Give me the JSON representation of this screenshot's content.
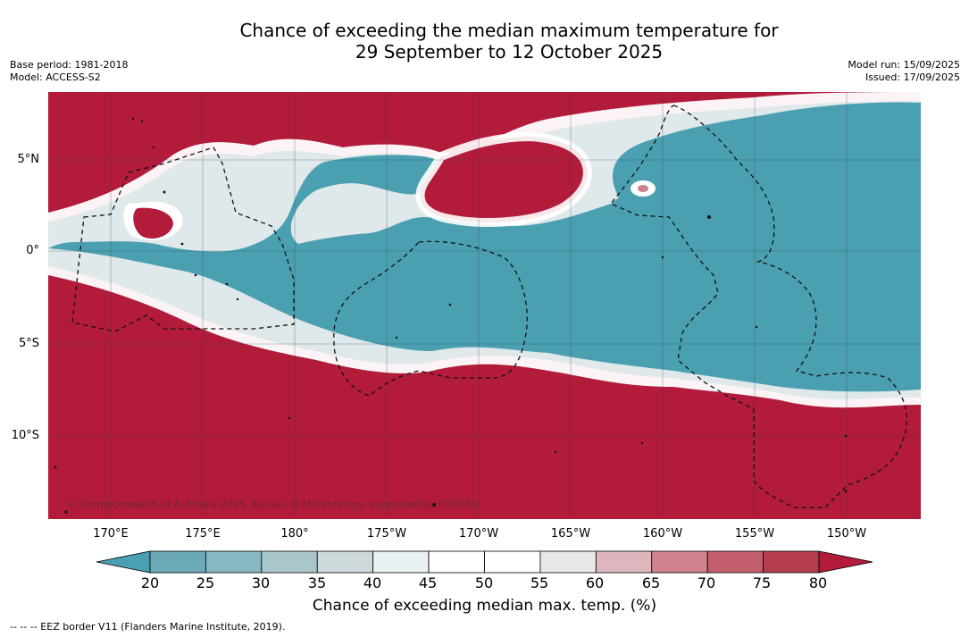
{
  "title": {
    "line1": "Chance of exceeding the median maximum temperature for",
    "line2": "29 September to 12 October 2025"
  },
  "meta": {
    "base_period": "Base period: 1981-2018",
    "model": "Model: ACCESS-S2",
    "model_run": "Model run: 15/09/2025",
    "issued": "Issued: 17/09/2025"
  },
  "map": {
    "lat_labels": [
      "5°N",
      "0°",
      "5°S",
      "10°S"
    ],
    "lon_labels": [
      "170°E",
      "175°E",
      "180°",
      "175°W",
      "170°W",
      "165°W",
      "160°W",
      "155°W",
      "150°W"
    ],
    "copyright": "© Commonwealth of Australia 2025, Bureau of Meteorology, supported by COSPPac",
    "colors": {
      "above": "#b21c3a",
      "below": "#4aa0b1"
    }
  },
  "colorbar": {
    "ticks": [
      "20",
      "25",
      "30",
      "35",
      "40",
      "45",
      "50",
      "55",
      "60",
      "65",
      "70",
      "75",
      "80"
    ],
    "colors": [
      "#4aa0b1",
      "#6aa9b5",
      "#87b8c3",
      "#a9c6cb",
      "#ced9dc",
      "#eaf1f3",
      "#ffffff",
      "#ffffff",
      "#e8e8e8",
      "#ddb7bd",
      "#d0838e",
      "#c35e6c",
      "#b63c4e",
      "#b21c3a"
    ],
    "label": "Chance of exceeding median max. temp. (%)"
  },
  "footnote": "--  --  -- EEZ border V11 (Flanders Marine Institute, 2019)."
}
